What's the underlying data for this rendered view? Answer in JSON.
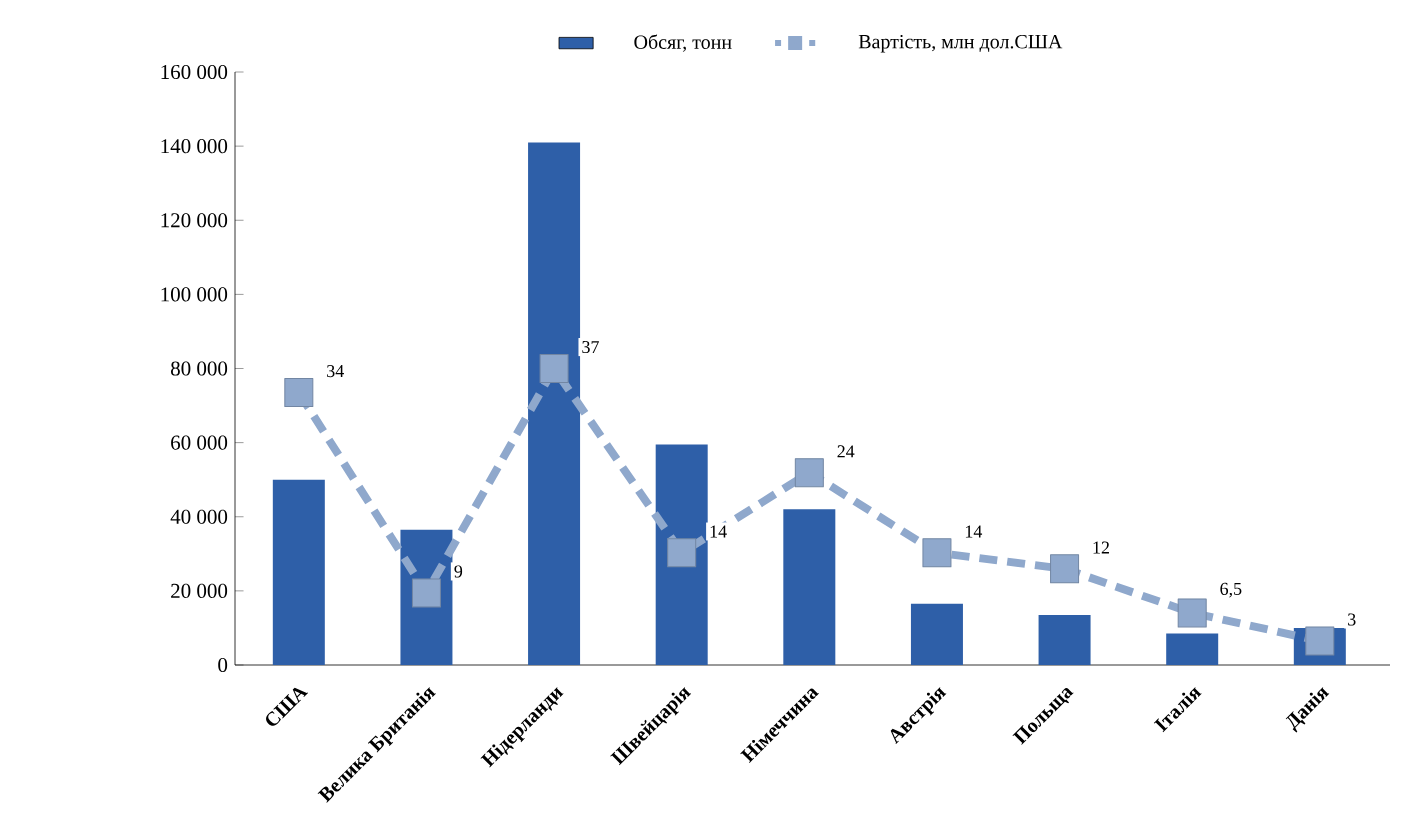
{
  "chart_data": {
    "type": "bar",
    "categories": [
      "США",
      "Велика Британія",
      "Нідерланди",
      "Швейцарія",
      "Німеччина",
      "Австрія",
      "Польща",
      "Італія",
      "Данія"
    ],
    "series": [
      {
        "name": "Обсяг, тонн",
        "color": "#2e5fa8",
        "values": [
          50000,
          36500,
          141000,
          59500,
          42000,
          16500,
          13500,
          8500,
          10000
        ]
      },
      {
        "name": "Вартість, млн дол.США",
        "type": "line",
        "axis": "y2",
        "color": "#8fa8cc",
        "marker": "square",
        "line_style": "dashed",
        "values": [
          34,
          9,
          37,
          14,
          24,
          14,
          12,
          6.5,
          3
        ],
        "value_labels": [
          "34",
          "9",
          "37",
          "14",
          "24",
          "14",
          "12",
          "6,5",
          "3"
        ]
      }
    ],
    "ylim": [
      0,
      160000
    ],
    "yticks": [
      {
        "value": 0,
        "label": "0"
      },
      {
        "value": 20000,
        "label": "20 000"
      },
      {
        "value": 40000,
        "label": "40 000"
      },
      {
        "value": 60000,
        "label": "60 000"
      },
      {
        "value": 80000,
        "label": "80 000"
      },
      {
        "value": 100000,
        "label": "100 000"
      },
      {
        "value": 120000,
        "label": "120 000"
      },
      {
        "value": 140000,
        "label": "140 000"
      },
      {
        "value": 160000,
        "label": "160 000"
      }
    ],
    "y2lim": [
      0,
      74
    ],
    "legend": "top",
    "grid": false
  }
}
